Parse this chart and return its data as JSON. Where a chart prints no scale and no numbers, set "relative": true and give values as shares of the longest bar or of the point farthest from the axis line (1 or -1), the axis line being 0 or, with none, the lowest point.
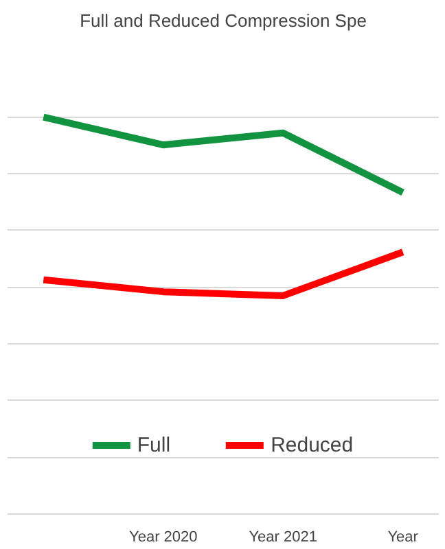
{
  "chart_data": {
    "type": "line",
    "title": "Full and Reduced Compression Spe",
    "categories": [
      null,
      "Year 2020",
      "Year 2021",
      "Year"
    ],
    "relative": true,
    "grid": "y",
    "legend": "bottom",
    "marker": "none",
    "line_style": "solid",
    "series": [
      {
        "name": "Full",
        "color": "#11933f",
        "values": [
          1,
          0.93,
          0.96,
          0.81
        ]
      },
      {
        "name": "Reduced",
        "color": "#ff0000",
        "values": [
          0.59,
          0.56,
          0.55,
          0.66
        ]
      }
    ]
  }
}
